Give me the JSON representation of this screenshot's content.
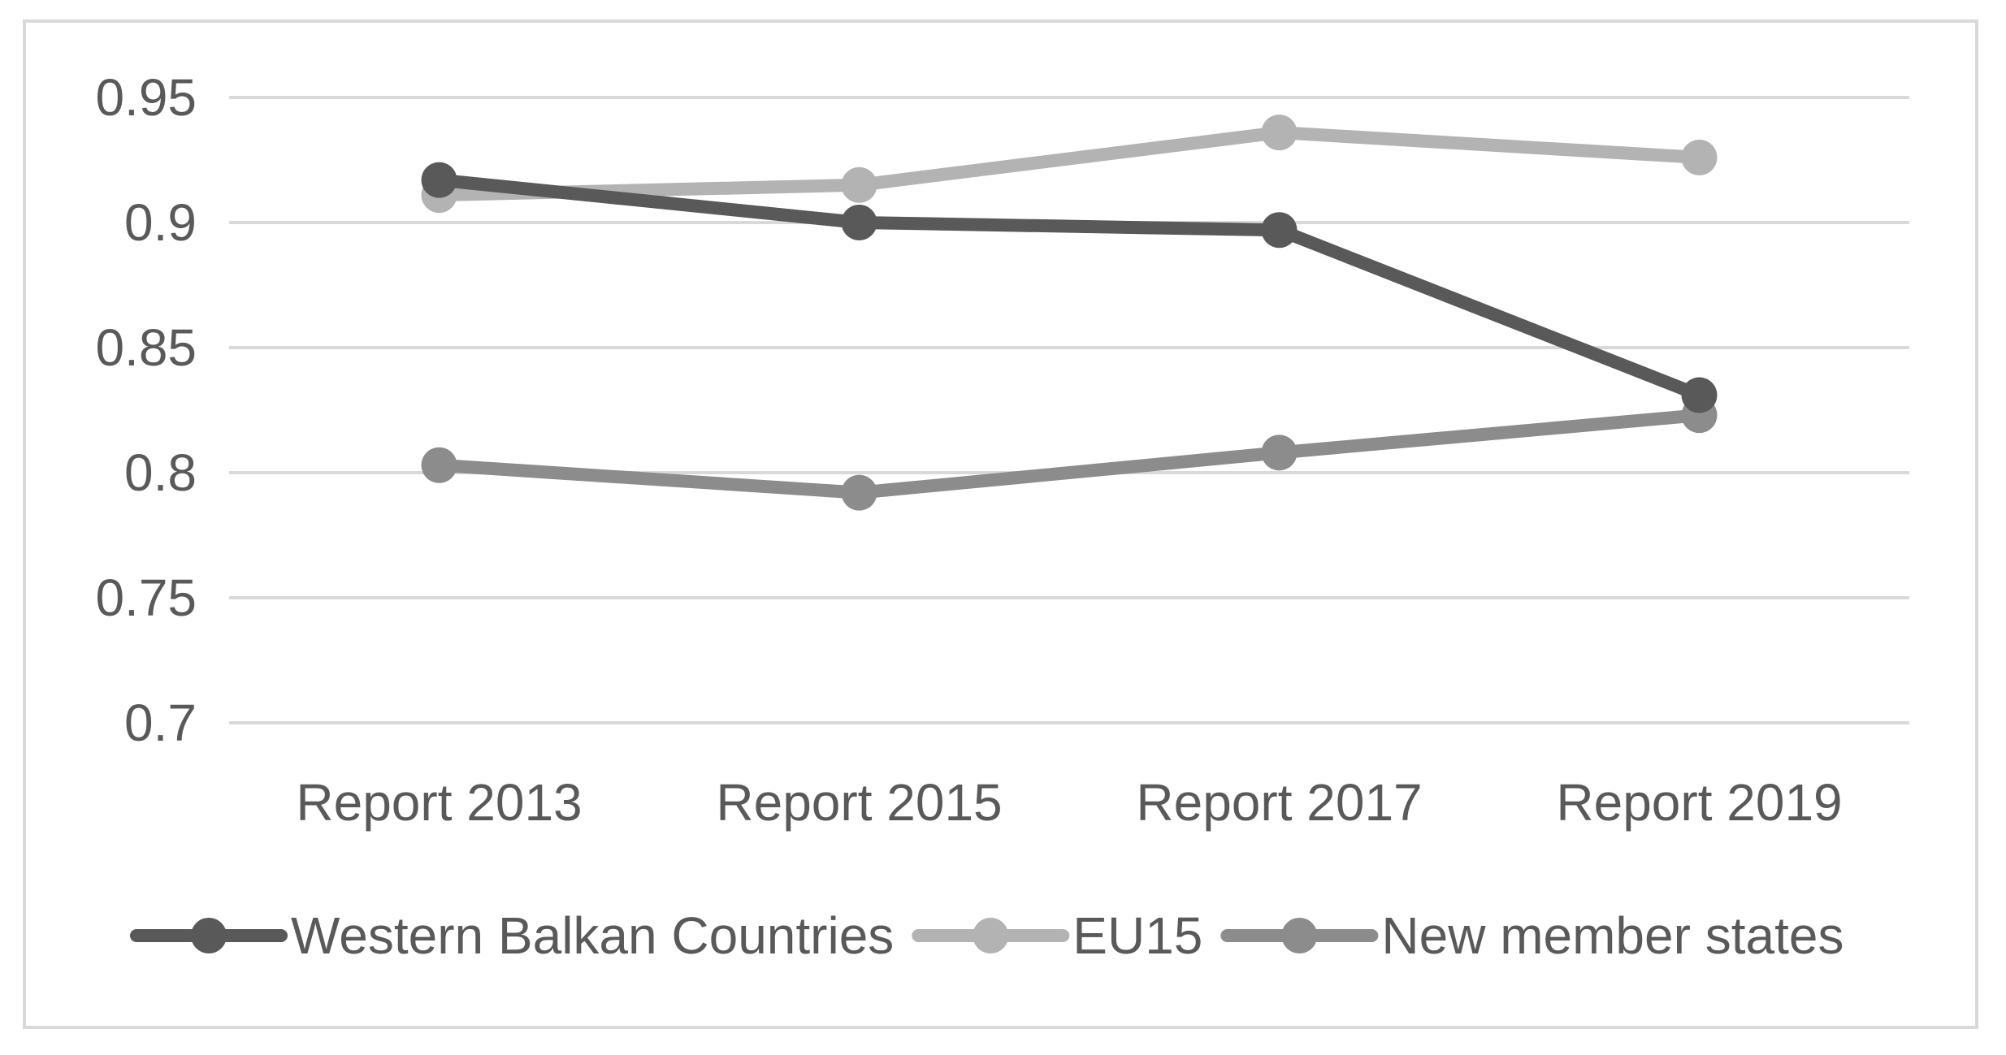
{
  "chart_data": {
    "type": "line",
    "title": "",
    "xlabel": "",
    "ylabel": "",
    "categories": [
      "Report 2013",
      "Report 2015",
      "Report 2017",
      "Report 2019"
    ],
    "ylim": [
      0.7,
      0.95
    ],
    "yticks": [
      "0.7",
      "0.75",
      "0.8",
      "0.85",
      "0.9",
      "0.95"
    ],
    "grid": "horizontal",
    "legend_position": "bottom",
    "series": [
      {
        "name": "Western Balkan Countries",
        "color": "#595959",
        "values": [
          0.917,
          0.9,
          0.897,
          0.831
        ]
      },
      {
        "name": "EU15",
        "color": "#b3b3b3",
        "values": [
          0.911,
          0.915,
          0.936,
          0.926
        ]
      },
      {
        "name": "New member states",
        "color": "#8c8c8c",
        "values": [
          0.803,
          0.792,
          0.808,
          0.823
        ]
      }
    ]
  }
}
